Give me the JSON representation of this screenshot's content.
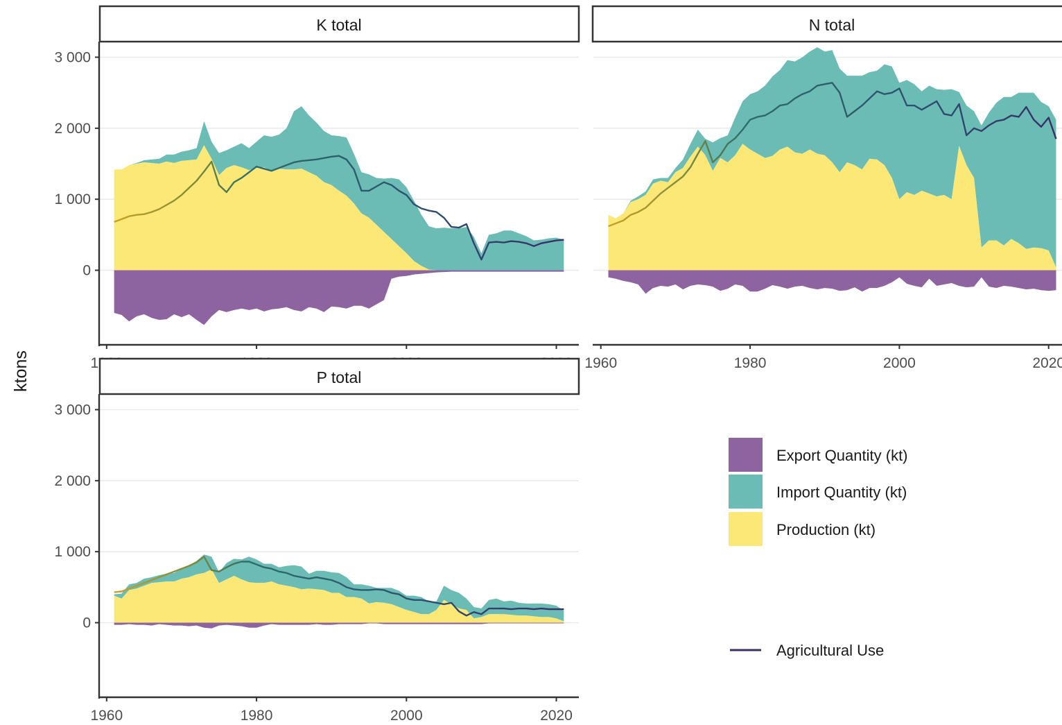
{
  "chart_data": {
    "type": "area",
    "ylabel": "ktons",
    "x_ticks": [
      1960,
      1980,
      2000,
      2020
    ],
    "y_ticks": [
      0,
      1000,
      2000,
      3000
    ],
    "y_tick_labels": [
      "0",
      "1 000",
      "2 000",
      "3 000"
    ],
    "x_tick_labels": [
      "1960",
      "1980",
      "2000",
      "2020"
    ],
    "ylim": [
      -1000,
      3300
    ],
    "legend": {
      "position": "right",
      "fill_items": [
        {
          "label": "Export Quantity (kt)",
          "color": "#8e64a0"
        },
        {
          "label": "Import Quantity (kt)",
          "color": "#6cbcb6"
        },
        {
          "label": "Production (kt)",
          "color": "#fbe877"
        }
      ],
      "line_items": [
        {
          "label": "Agricultural Use",
          "color": "#3b2d66"
        }
      ]
    },
    "panels": [
      {
        "title": "K total",
        "x": [
          1961,
          1962,
          1963,
          1964,
          1965,
          1966,
          1967,
          1968,
          1969,
          1970,
          1971,
          1972,
          1973,
          1974,
          1975,
          1976,
          1977,
          1978,
          1979,
          1980,
          1981,
          1982,
          1983,
          1984,
          1985,
          1986,
          1987,
          1988,
          1989,
          1990,
          1991,
          1992,
          1993,
          1994,
          1995,
          1996,
          1997,
          1998,
          1999,
          2000,
          2001,
          2002,
          2003,
          2004,
          2005,
          2006,
          2007,
          2008,
          2009,
          2010,
          2011,
          2012,
          2013,
          2014,
          2015,
          2016,
          2017,
          2018,
          2019,
          2020,
          2021
        ],
        "production": [
          1420,
          1420,
          1480,
          1500,
          1520,
          1510,
          1500,
          1530,
          1510,
          1540,
          1550,
          1560,
          1760,
          1570,
          1340,
          1440,
          1480,
          1450,
          1410,
          1440,
          1450,
          1400,
          1430,
          1420,
          1420,
          1430,
          1380,
          1330,
          1240,
          1200,
          1120,
          1050,
          940,
          800,
          740,
          640,
          540,
          440,
          340,
          240,
          130,
          60,
          10,
          0,
          0,
          0,
          0,
          0,
          0,
          0,
          0,
          0,
          0,
          0,
          0,
          0,
          0,
          0,
          0,
          0,
          0
        ],
        "imports": [
          0,
          0,
          0,
          10,
          30,
          50,
          70,
          100,
          120,
          130,
          140,
          160,
          340,
          240,
          310,
          250,
          260,
          340,
          310,
          370,
          450,
          480,
          480,
          580,
          820,
          880,
          800,
          750,
          720,
          700,
          770,
          820,
          700,
          580,
          610,
          660,
          750,
          860,
          940,
          930,
          850,
          720,
          610,
          590,
          600,
          590,
          590,
          610,
          470,
          240,
          500,
          520,
          560,
          560,
          520,
          480,
          420,
          430,
          450,
          460,
          430
        ],
        "exports": [
          -600,
          -630,
          -720,
          -650,
          -620,
          -670,
          -700,
          -690,
          -620,
          -660,
          -620,
          -700,
          -770,
          -650,
          -560,
          -590,
          -560,
          -540,
          -560,
          -540,
          -580,
          -550,
          -540,
          -520,
          -560,
          -580,
          -520,
          -540,
          -590,
          -510,
          -520,
          -540,
          -500,
          -500,
          -540,
          -480,
          -420,
          -120,
          -90,
          -80,
          -60,
          -50,
          -40,
          -30,
          -25,
          -20,
          -20,
          -20,
          -20,
          -20,
          -20,
          -20,
          -20,
          -20,
          -20,
          -20,
          -20,
          -20,
          -20,
          -20,
          -20
        ],
        "agricultural_use": [
          680,
          720,
          760,
          780,
          790,
          820,
          860,
          920,
          980,
          1060,
          1160,
          1260,
          1390,
          1530,
          1200,
          1100,
          1240,
          1300,
          1380,
          1460,
          1430,
          1400,
          1440,
          1480,
          1520,
          1540,
          1550,
          1560,
          1580,
          1600,
          1610,
          1560,
          1420,
          1120,
          1120,
          1180,
          1240,
          1200,
          1120,
          1060,
          930,
          870,
          840,
          820,
          740,
          610,
          600,
          650,
          380,
          150,
          390,
          400,
          390,
          410,
          400,
          380,
          340,
          380,
          400,
          420,
          430
        ]
      },
      {
        "title": "N total",
        "x": [
          1961,
          1962,
          1963,
          1964,
          1965,
          1966,
          1967,
          1968,
          1969,
          1970,
          1971,
          1972,
          1973,
          1974,
          1975,
          1976,
          1977,
          1978,
          1979,
          1980,
          1981,
          1982,
          1983,
          1984,
          1985,
          1986,
          1987,
          1988,
          1989,
          1990,
          1991,
          1992,
          1993,
          1994,
          1995,
          1996,
          1997,
          1998,
          1999,
          2000,
          2001,
          2002,
          2003,
          2004,
          2005,
          2006,
          2007,
          2008,
          2009,
          2010,
          2011,
          2012,
          2013,
          2014,
          2015,
          2016,
          2017,
          2018,
          2019,
          2020,
          2021
        ],
        "production": [
          780,
          730,
          800,
          960,
          1000,
          1060,
          1220,
          1260,
          1240,
          1380,
          1440,
          1600,
          1740,
          1620,
          1400,
          1580,
          1520,
          1620,
          1780,
          1700,
          1640,
          1580,
          1610,
          1700,
          1740,
          1660,
          1640,
          1700,
          1640,
          1620,
          1520,
          1380,
          1520,
          1480,
          1420,
          1570,
          1560,
          1480,
          1300,
          1000,
          1100,
          1060,
          1120,
          1080,
          1040,
          1060,
          1000,
          1750,
          1480,
          1300,
          320,
          420,
          420,
          350,
          440,
          380,
          300,
          320,
          310,
          280,
          40
        ],
        "imports": [
          0,
          0,
          0,
          20,
          40,
          50,
          60,
          40,
          60,
          60,
          120,
          180,
          240,
          230,
          400,
          280,
          380,
          530,
          600,
          780,
          880,
          1020,
          1120,
          1120,
          1220,
          1280,
          1360,
          1380,
          1500,
          1460,
          1580,
          1460,
          1220,
          1260,
          1320,
          1220,
          1250,
          1420,
          1570,
          1640,
          1580,
          1560,
          1400,
          1520,
          1510,
          1480,
          1550,
          760,
          840,
          940,
          1720,
          1800,
          1940,
          2090,
          2000,
          2120,
          2200,
          2180,
          2060,
          2030,
          2080
        ],
        "exports": [
          -100,
          -120,
          -150,
          -170,
          -200,
          -330,
          -250,
          -220,
          -230,
          -200,
          -270,
          -220,
          -200,
          -210,
          -230,
          -290,
          -260,
          -200,
          -220,
          -300,
          -300,
          -260,
          -210,
          -230,
          -260,
          -230,
          -220,
          -250,
          -270,
          -250,
          -260,
          -290,
          -280,
          -240,
          -300,
          -250,
          -250,
          -220,
          -170,
          -100,
          -190,
          -220,
          -240,
          -120,
          -220,
          -200,
          -180,
          -220,
          -240,
          -230,
          -100,
          -230,
          -250,
          -220,
          -230,
          -250,
          -270,
          -260,
          -280,
          -290,
          -280
        ],
        "agricultural_use": [
          620,
          660,
          700,
          780,
          820,
          880,
          980,
          1080,
          1160,
          1240,
          1320,
          1450,
          1640,
          1820,
          1520,
          1620,
          1780,
          1860,
          1980,
          2120,
          2160,
          2180,
          2240,
          2320,
          2340,
          2420,
          2480,
          2520,
          2600,
          2620,
          2640,
          2500,
          2160,
          2240,
          2320,
          2420,
          2520,
          2480,
          2500,
          2560,
          2320,
          2320,
          2260,
          2320,
          2380,
          2200,
          2180,
          2340,
          1900,
          2000,
          1960,
          2040,
          2100,
          2120,
          2180,
          2160,
          2300,
          2120,
          2020,
          2150,
          1850
        ]
      },
      {
        "title": "P total",
        "x": [
          1961,
          1962,
          1963,
          1964,
          1965,
          1966,
          1967,
          1968,
          1969,
          1970,
          1971,
          1972,
          1973,
          1974,
          1975,
          1976,
          1977,
          1978,
          1979,
          1980,
          1981,
          1982,
          1983,
          1984,
          1985,
          1986,
          1987,
          1988,
          1989,
          1990,
          1991,
          1992,
          1993,
          1994,
          1995,
          1996,
          1997,
          1998,
          1999,
          2000,
          2001,
          2002,
          2003,
          2004,
          2005,
          2006,
          2007,
          2008,
          2009,
          2010,
          2011,
          2012,
          2013,
          2014,
          2015,
          2016,
          2017,
          2018,
          2019,
          2020,
          2021
        ],
        "production": [
          380,
          340,
          460,
          480,
          520,
          560,
          570,
          580,
          580,
          620,
          640,
          680,
          700,
          750,
          560,
          610,
          660,
          610,
          570,
          560,
          560,
          580,
          540,
          520,
          500,
          470,
          480,
          470,
          460,
          420,
          420,
          360,
          360,
          340,
          270,
          290,
          280,
          260,
          220,
          180,
          150,
          120,
          120,
          180,
          320,
          260,
          200,
          180,
          60,
          80,
          120,
          120,
          120,
          110,
          100,
          100,
          90,
          80,
          80,
          60,
          20
        ],
        "imports": [
          20,
          70,
          80,
          80,
          100,
          80,
          100,
          110,
          120,
          140,
          170,
          190,
          260,
          180,
          150,
          230,
          240,
          280,
          360,
          330,
          270,
          250,
          240,
          280,
          310,
          320,
          210,
          260,
          270,
          290,
          280,
          280,
          180,
          200,
          250,
          200,
          210,
          230,
          230,
          200,
          230,
          240,
          180,
          120,
          200,
          200,
          220,
          160,
          160,
          120,
          200,
          220,
          180,
          200,
          180,
          170,
          180,
          190,
          180,
          180,
          150
        ],
        "exports": [
          -30,
          -30,
          -20,
          -30,
          -30,
          -40,
          -20,
          -30,
          -40,
          -40,
          -50,
          -40,
          -70,
          -80,
          -40,
          -30,
          -40,
          -50,
          -70,
          -70,
          -40,
          -20,
          -30,
          -30,
          -30,
          -30,
          -30,
          -20,
          -30,
          -30,
          -20,
          -20,
          -20,
          -20,
          -10,
          -10,
          -20,
          -20,
          -20,
          -20,
          -20,
          -20,
          -20,
          -20,
          -20,
          -20,
          -20,
          -20,
          -20,
          -20,
          -10,
          -10,
          -10,
          -10,
          -10,
          -10,
          -10,
          -10,
          -10,
          -10,
          -10
        ],
        "agricultural_use": [
          430,
          440,
          480,
          520,
          560,
          600,
          640,
          680,
          720,
          760,
          800,
          850,
          930,
          740,
          720,
          780,
          830,
          860,
          860,
          820,
          780,
          760,
          720,
          700,
          660,
          640,
          620,
          640,
          620,
          600,
          560,
          500,
          470,
          460,
          460,
          470,
          460,
          420,
          400,
          340,
          320,
          320,
          300,
          280,
          260,
          280,
          160,
          100,
          150,
          120,
          200,
          200,
          200,
          190,
          200,
          200,
          190,
          200,
          190,
          190,
          190
        ]
      }
    ]
  }
}
